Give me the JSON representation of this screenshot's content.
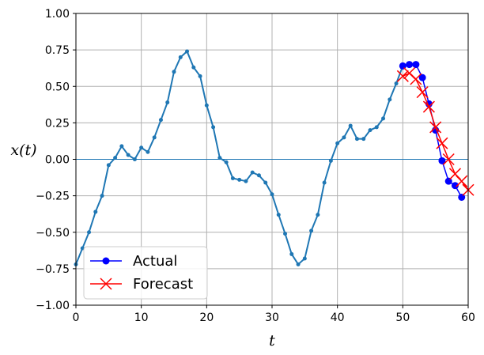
{
  "chart_data": {
    "type": "line",
    "title": "",
    "xlabel": "t",
    "ylabel": "x(t)",
    "xlim": [
      0,
      60
    ],
    "ylim": [
      -1.0,
      1.0
    ],
    "xticks": [
      0,
      10,
      20,
      30,
      40,
      50,
      60
    ],
    "xtick_labels": [
      "0",
      "10",
      "20",
      "30",
      "40",
      "50",
      "60"
    ],
    "yticks": [
      1.0,
      0.75,
      0.5,
      0.25,
      0.0,
      -0.25,
      -0.5,
      -0.75,
      -1.0
    ],
    "ytick_labels": [
      "1.00",
      "0.75",
      "0.50",
      "0.25",
      "0.00",
      "−0.25",
      "−0.50",
      "−0.75",
      "−1.00"
    ],
    "grid": true,
    "legend_position": "bottom-left",
    "zero_line": {
      "y": 0,
      "color": "#1f77b4"
    },
    "series": [
      {
        "id": "input",
        "color": "#1f77b4",
        "marker": "dot",
        "x": [
          0,
          1,
          2,
          3,
          4,
          5,
          6,
          7,
          8,
          9,
          10,
          11,
          12,
          13,
          14,
          15,
          16,
          17,
          18,
          19,
          20,
          21,
          22,
          23,
          24,
          25,
          26,
          27,
          28,
          29,
          30,
          31,
          32,
          33,
          34,
          35,
          36,
          37,
          38,
          39,
          40,
          41,
          42,
          43,
          44,
          45,
          46,
          47,
          48,
          49,
          50
        ],
        "values": [
          -0.72,
          -0.61,
          -0.5,
          -0.36,
          -0.25,
          -0.04,
          0.01,
          0.09,
          0.03,
          0.0,
          0.08,
          0.05,
          0.15,
          0.27,
          0.39,
          0.6,
          0.7,
          0.74,
          0.63,
          0.57,
          0.37,
          0.22,
          0.01,
          -0.02,
          -0.13,
          -0.14,
          -0.15,
          -0.09,
          -0.11,
          -0.16,
          -0.24,
          -0.38,
          -0.51,
          -0.65,
          -0.72,
          -0.68,
          -0.49,
          -0.38,
          -0.16,
          -0.01,
          0.11,
          0.15,
          0.23,
          0.14,
          0.14,
          0.2,
          0.22,
          0.28,
          0.41,
          0.52,
          0.64
        ]
      },
      {
        "id": "actual",
        "name": "Actual",
        "color": "#0000ff",
        "marker": "circle",
        "x": [
          50,
          51,
          52,
          53,
          54,
          55,
          56,
          57,
          58,
          59
        ],
        "values": [
          0.64,
          0.65,
          0.65,
          0.56,
          0.38,
          0.2,
          -0.01,
          -0.15,
          -0.18,
          -0.26
        ]
      },
      {
        "id": "forecast",
        "name": "Forecast",
        "color": "#ff0000",
        "marker": "x",
        "x": [
          50,
          51,
          52,
          53,
          54,
          55,
          56,
          57,
          58,
          59,
          60
        ],
        "values": [
          0.57,
          0.59,
          0.55,
          0.46,
          0.36,
          0.22,
          0.11,
          0.0,
          -0.1,
          -0.15,
          -0.21
        ]
      }
    ]
  }
}
